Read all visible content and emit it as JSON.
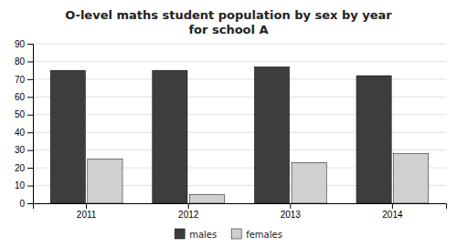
{
  "chart_data": {
    "type": "bar",
    "title": "O-level maths student population by sex by year\nfor school A",
    "categories": [
      "2011",
      "2012",
      "2013",
      "2014"
    ],
    "series": [
      {
        "name": "males",
        "color": "#3d3d3d",
        "values": [
          75,
          75,
          77,
          72
        ]
      },
      {
        "name": "females",
        "color": "#d0d0d0",
        "values": [
          25,
          5,
          23,
          28
        ]
      }
    ],
    "ylim": [
      0,
      90
    ],
    "yticks": [
      0,
      10,
      20,
      30,
      40,
      50,
      60,
      70,
      80,
      90
    ],
    "grid": true,
    "legend": "bottom"
  }
}
